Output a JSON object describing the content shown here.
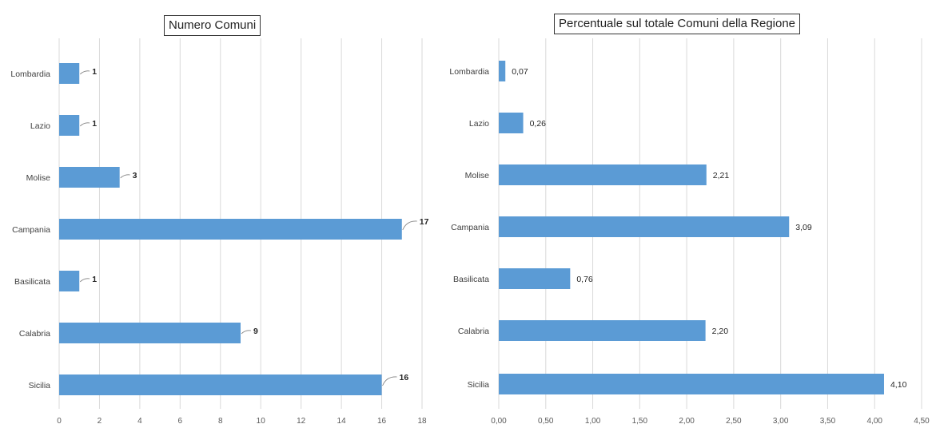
{
  "chart_data": [
    {
      "type": "bar",
      "orientation": "horizontal",
      "title": "Numero Comuni",
      "categories": [
        "Lombardia",
        "Lazio",
        "Molise",
        "Campania",
        "Basilicata",
        "Calabria",
        "Sicilia"
      ],
      "values": [
        1,
        1,
        3,
        17,
        1,
        9,
        16
      ],
      "value_labels": [
        "1",
        "1",
        "3",
        "17",
        "1",
        "9",
        "16"
      ],
      "xlim": [
        0,
        18
      ],
      "xticks": [
        0,
        2,
        4,
        6,
        8,
        10,
        12,
        14,
        16,
        18
      ],
      "xtick_labels": [
        "0",
        "2",
        "4",
        "6",
        "8",
        "10",
        "12",
        "14",
        "16",
        "18"
      ],
      "grid": "vertical",
      "bar_color": "#5b9bd5"
    },
    {
      "type": "bar",
      "orientation": "horizontal",
      "title": "Percentuale sul totale Comuni della Regione",
      "categories": [
        "Lombardia",
        "Lazio",
        "Molise",
        "Campania",
        "Basilicata",
        "Calabria",
        "Sicilia"
      ],
      "values": [
        0.07,
        0.26,
        2.21,
        3.09,
        0.76,
        2.2,
        4.1
      ],
      "value_labels": [
        "0,07",
        "0,26",
        "2,21",
        "3,09",
        "0,76",
        "2,20",
        "4,10"
      ],
      "xlim": [
        0,
        4.5
      ],
      "xticks": [
        0,
        0.5,
        1,
        1.5,
        2,
        2.5,
        3,
        3.5,
        4,
        4.5
      ],
      "xtick_labels": [
        "0,00",
        "0,50",
        "1,00",
        "1,50",
        "2,00",
        "2,50",
        "3,00",
        "3,50",
        "4,00",
        "4,50"
      ],
      "grid": "vertical",
      "bar_color": "#5b9bd5"
    }
  ]
}
